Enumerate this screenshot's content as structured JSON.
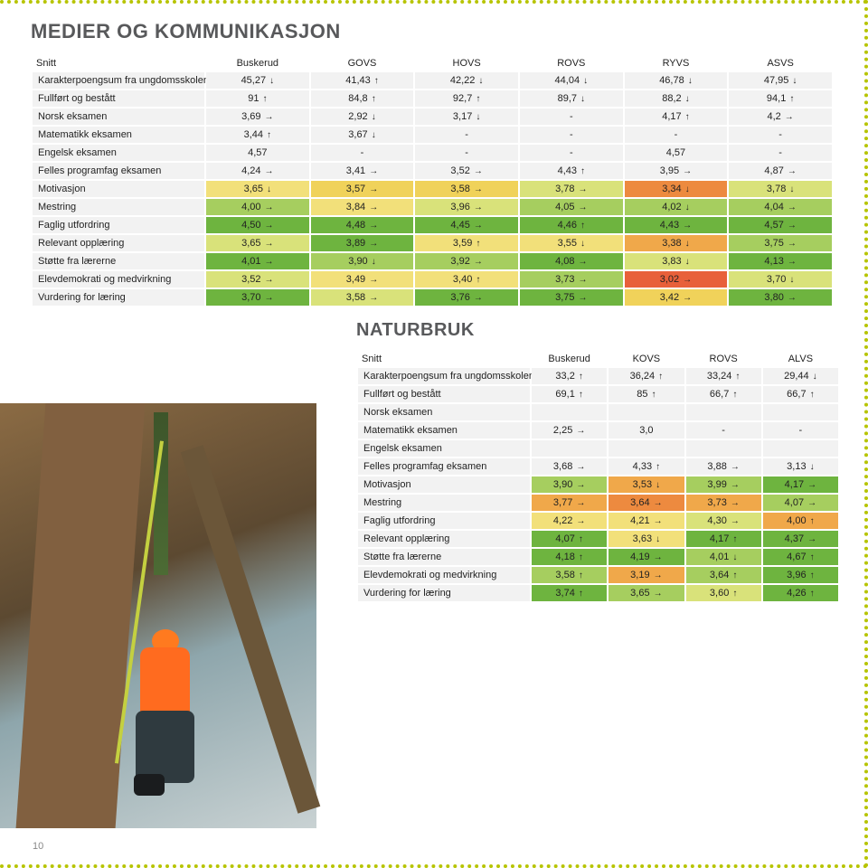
{
  "page_number": "10",
  "accent_color": "#b7c400",
  "cell_colors": {
    "none": "#f2f2f2",
    "g1": "#6eb43f",
    "g2": "#a6ce5f",
    "g3": "#d9e27a",
    "y1": "#f2e07a",
    "y2": "#f0d25a",
    "o1": "#f0a84a",
    "o2": "#ed8a3f",
    "r1": "#e8603a"
  },
  "table1": {
    "title": "MEDIER OG KOMMUNIKASJON",
    "columns": [
      "Snitt",
      "Buskerud",
      "GOVS",
      "HOVS",
      "ROVS",
      "RYVS",
      "ASVS"
    ],
    "rows": [
      {
        "label": "Karakterpoengsum fra ungdomsskolen",
        "cells": [
          {
            "v": "45,27",
            "a": "↓",
            "c": "none"
          },
          {
            "v": "41,43",
            "a": "↑",
            "c": "none"
          },
          {
            "v": "42,22",
            "a": "↓",
            "c": "none"
          },
          {
            "v": "44,04",
            "a": "↓",
            "c": "none"
          },
          {
            "v": "46,78",
            "a": "↓",
            "c": "none"
          },
          {
            "v": "47,95",
            "a": "↓",
            "c": "none"
          }
        ]
      },
      {
        "label": "Fullført og bestått",
        "cells": [
          {
            "v": "91",
            "a": "↑",
            "c": "none"
          },
          {
            "v": "84,8",
            "a": "↑",
            "c": "none"
          },
          {
            "v": "92,7",
            "a": "↑",
            "c": "none"
          },
          {
            "v": "89,7",
            "a": "↓",
            "c": "none"
          },
          {
            "v": "88,2",
            "a": "↓",
            "c": "none"
          },
          {
            "v": "94,1",
            "a": "↑",
            "c": "none"
          }
        ]
      },
      {
        "label": "Norsk eksamen",
        "cells": [
          {
            "v": "3,69",
            "a": "→",
            "c": "none"
          },
          {
            "v": "2,92",
            "a": "↓",
            "c": "none"
          },
          {
            "v": "3,17",
            "a": "↓",
            "c": "none"
          },
          {
            "v": "-",
            "a": "",
            "c": "none"
          },
          {
            "v": "4,17",
            "a": "↑",
            "c": "none"
          },
          {
            "v": "4,2",
            "a": "→",
            "c": "none"
          }
        ]
      },
      {
        "label": "Matematikk eksamen",
        "cells": [
          {
            "v": "3,44",
            "a": "↑",
            "c": "none"
          },
          {
            "v": "3,67",
            "a": "↓",
            "c": "none"
          },
          {
            "v": "-",
            "a": "",
            "c": "none"
          },
          {
            "v": "-",
            "a": "",
            "c": "none"
          },
          {
            "v": "-",
            "a": "",
            "c": "none"
          },
          {
            "v": "-",
            "a": "",
            "c": "none"
          }
        ]
      },
      {
        "label": "Engelsk eksamen",
        "cells": [
          {
            "v": "4,57",
            "a": "",
            "c": "none"
          },
          {
            "v": "-",
            "a": "",
            "c": "none"
          },
          {
            "v": "-",
            "a": "",
            "c": "none"
          },
          {
            "v": "-",
            "a": "",
            "c": "none"
          },
          {
            "v": "4,57",
            "a": "",
            "c": "none"
          },
          {
            "v": "-",
            "a": "",
            "c": "none"
          }
        ]
      },
      {
        "label": "Felles programfag eksamen",
        "cells": [
          {
            "v": "4,24",
            "a": "→",
            "c": "none"
          },
          {
            "v": "3,41",
            "a": "→",
            "c": "none"
          },
          {
            "v": "3,52",
            "a": "→",
            "c": "none"
          },
          {
            "v": "4,43",
            "a": "↑",
            "c": "none"
          },
          {
            "v": "3,95",
            "a": "→",
            "c": "none"
          },
          {
            "v": "4,87",
            "a": "→",
            "c": "none"
          }
        ]
      },
      {
        "label": "Motivasjon",
        "cells": [
          {
            "v": "3,65",
            "a": "↓",
            "c": "y1"
          },
          {
            "v": "3,57",
            "a": "→",
            "c": "y2"
          },
          {
            "v": "3,58",
            "a": "→",
            "c": "y2"
          },
          {
            "v": "3,78",
            "a": "→",
            "c": "g3"
          },
          {
            "v": "3,34",
            "a": "↓",
            "c": "o2"
          },
          {
            "v": "3,78",
            "a": "↓",
            "c": "g3"
          }
        ]
      },
      {
        "label": "Mestring",
        "cells": [
          {
            "v": "4,00",
            "a": "→",
            "c": "g2"
          },
          {
            "v": "3,84",
            "a": "→",
            "c": "y1"
          },
          {
            "v": "3,96",
            "a": "→",
            "c": "g3"
          },
          {
            "v": "4,05",
            "a": "→",
            "c": "g2"
          },
          {
            "v": "4,02",
            "a": "↓",
            "c": "g2"
          },
          {
            "v": "4,04",
            "a": "→",
            "c": "g2"
          }
        ]
      },
      {
        "label": "Faglig utfordring",
        "cells": [
          {
            "v": "4,50",
            "a": "→",
            "c": "g1"
          },
          {
            "v": "4,48",
            "a": "→",
            "c": "g1"
          },
          {
            "v": "4,45",
            "a": "→",
            "c": "g1"
          },
          {
            "v": "4,46",
            "a": "↑",
            "c": "g1"
          },
          {
            "v": "4,43",
            "a": "→",
            "c": "g1"
          },
          {
            "v": "4,57",
            "a": "→",
            "c": "g1"
          }
        ]
      },
      {
        "label": "Relevant opplæring",
        "cells": [
          {
            "v": "3,65",
            "a": "→",
            "c": "g3"
          },
          {
            "v": "3,89",
            "a": "→",
            "c": "g1"
          },
          {
            "v": "3,59",
            "a": "↑",
            "c": "y1"
          },
          {
            "v": "3,55",
            "a": "↓",
            "c": "y1"
          },
          {
            "v": "3,38",
            "a": "↓",
            "c": "o1"
          },
          {
            "v": "3,75",
            "a": "→",
            "c": "g2"
          }
        ]
      },
      {
        "label": "Støtte fra lærerne",
        "cells": [
          {
            "v": "4,01",
            "a": "→",
            "c": "g1"
          },
          {
            "v": "3,90",
            "a": "↓",
            "c": "g2"
          },
          {
            "v": "3,92",
            "a": "→",
            "c": "g2"
          },
          {
            "v": "4,08",
            "a": "→",
            "c": "g1"
          },
          {
            "v": "3,83",
            "a": "↓",
            "c": "g3"
          },
          {
            "v": "4,13",
            "a": "→",
            "c": "g1"
          }
        ]
      },
      {
        "label": "Elevdemokrati og medvirkning",
        "cells": [
          {
            "v": "3,52",
            "a": "→",
            "c": "g3"
          },
          {
            "v": "3,49",
            "a": "→",
            "c": "y1"
          },
          {
            "v": "3,40",
            "a": "↑",
            "c": "y1"
          },
          {
            "v": "3,73",
            "a": "→",
            "c": "g2"
          },
          {
            "v": "3,02",
            "a": "→",
            "c": "r1"
          },
          {
            "v": "3,70",
            "a": "↓",
            "c": "g3"
          }
        ]
      },
      {
        "label": "Vurdering for læring",
        "cells": [
          {
            "v": "3,70",
            "a": "→",
            "c": "g1"
          },
          {
            "v": "3,58",
            "a": "→",
            "c": "g3"
          },
          {
            "v": "3,76",
            "a": "→",
            "c": "g1"
          },
          {
            "v": "3,75",
            "a": "→",
            "c": "g1"
          },
          {
            "v": "3,42",
            "a": "→",
            "c": "y2"
          },
          {
            "v": "3,80",
            "a": "→",
            "c": "g1"
          }
        ]
      }
    ]
  },
  "table2": {
    "title": "NATURBRUK",
    "columns": [
      "Snitt",
      "Buskerud",
      "KOVS",
      "ROVS",
      "ALVS"
    ],
    "rows": [
      {
        "label": "Karakterpoengsum fra ungdomsskolen",
        "cells": [
          {
            "v": "33,2",
            "a": "↑",
            "c": "none"
          },
          {
            "v": "36,24",
            "a": "↑",
            "c": "none"
          },
          {
            "v": "33,24",
            "a": "↑",
            "c": "none"
          },
          {
            "v": "29,44",
            "a": "↓",
            "c": "none"
          }
        ]
      },
      {
        "label": "Fullført og bestått",
        "cells": [
          {
            "v": "69,1",
            "a": "↑",
            "c": "none"
          },
          {
            "v": "85",
            "a": "↑",
            "c": "none"
          },
          {
            "v": "66,7",
            "a": "↑",
            "c": "none"
          },
          {
            "v": "66,7",
            "a": "↑",
            "c": "none"
          }
        ]
      },
      {
        "label": "Norsk eksamen",
        "cells": [
          {
            "v": "",
            "a": "",
            "c": "none"
          },
          {
            "v": "",
            "a": "",
            "c": "none"
          },
          {
            "v": "",
            "a": "",
            "c": "none"
          },
          {
            "v": "",
            "a": "",
            "c": "none"
          }
        ]
      },
      {
        "label": "Matematikk eksamen",
        "cells": [
          {
            "v": "2,25",
            "a": "→",
            "c": "none"
          },
          {
            "v": "3,0",
            "a": "",
            "c": "none"
          },
          {
            "v": "-",
            "a": "",
            "c": "none"
          },
          {
            "v": "-",
            "a": "",
            "c": "none"
          }
        ]
      },
      {
        "label": "Engelsk eksamen",
        "cells": [
          {
            "v": "",
            "a": "",
            "c": "none"
          },
          {
            "v": "",
            "a": "",
            "c": "none"
          },
          {
            "v": "",
            "a": "",
            "c": "none"
          },
          {
            "v": "",
            "a": "",
            "c": "none"
          }
        ]
      },
      {
        "label": "Felles programfag eksamen",
        "cells": [
          {
            "v": "3,68",
            "a": "→",
            "c": "none"
          },
          {
            "v": "4,33",
            "a": "↑",
            "c": "none"
          },
          {
            "v": "3,88",
            "a": "→",
            "c": "none"
          },
          {
            "v": "3,13",
            "a": "↓",
            "c": "none"
          }
        ]
      },
      {
        "label": "Motivasjon",
        "cells": [
          {
            "v": "3,90",
            "a": "→",
            "c": "g2"
          },
          {
            "v": "3,53",
            "a": "↓",
            "c": "o1"
          },
          {
            "v": "3,99",
            "a": "→",
            "c": "g2"
          },
          {
            "v": "4,17",
            "a": "→",
            "c": "g1"
          }
        ]
      },
      {
        "label": "Mestring",
        "cells": [
          {
            "v": "3,77",
            "a": "→",
            "c": "o1"
          },
          {
            "v": "3,64",
            "a": "→",
            "c": "o2"
          },
          {
            "v": "3,73",
            "a": "→",
            "c": "o1"
          },
          {
            "v": "4,07",
            "a": "→",
            "c": "g2"
          }
        ]
      },
      {
        "label": "Faglig utfordring",
        "cells": [
          {
            "v": "4,22",
            "a": "→",
            "c": "y1"
          },
          {
            "v": "4,21",
            "a": "→",
            "c": "y1"
          },
          {
            "v": "4,30",
            "a": "→",
            "c": "g3"
          },
          {
            "v": "4,00",
            "a": "↑",
            "c": "o1"
          }
        ]
      },
      {
        "label": "Relevant opplæring",
        "cells": [
          {
            "v": "4,07",
            "a": "↑",
            "c": "g1"
          },
          {
            "v": "3,63",
            "a": "↓",
            "c": "y1"
          },
          {
            "v": "4,17",
            "a": "↑",
            "c": "g1"
          },
          {
            "v": "4,37",
            "a": "→",
            "c": "g1"
          }
        ]
      },
      {
        "label": "Støtte fra lærerne",
        "cells": [
          {
            "v": "4,18",
            "a": "↑",
            "c": "g1"
          },
          {
            "v": "4,19",
            "a": "→",
            "c": "g1"
          },
          {
            "v": "4,01",
            "a": "↓",
            "c": "g2"
          },
          {
            "v": "4,67",
            "a": "↑",
            "c": "g1"
          }
        ]
      },
      {
        "label": "Elevdemokrati og medvirkning",
        "cells": [
          {
            "v": "3,58",
            "a": "↑",
            "c": "g2"
          },
          {
            "v": "3,19",
            "a": "→",
            "c": "o1"
          },
          {
            "v": "3,64",
            "a": "↑",
            "c": "g2"
          },
          {
            "v": "3,96",
            "a": "↑",
            "c": "g1"
          }
        ]
      },
      {
        "label": "Vurdering for læring",
        "cells": [
          {
            "v": "3,74",
            "a": "↑",
            "c": "g1"
          },
          {
            "v": "3,65",
            "a": "→",
            "c": "g2"
          },
          {
            "v": "3,60",
            "a": "↑",
            "c": "g3"
          },
          {
            "v": "4,26",
            "a": "↑",
            "c": "g1"
          }
        ]
      }
    ]
  }
}
